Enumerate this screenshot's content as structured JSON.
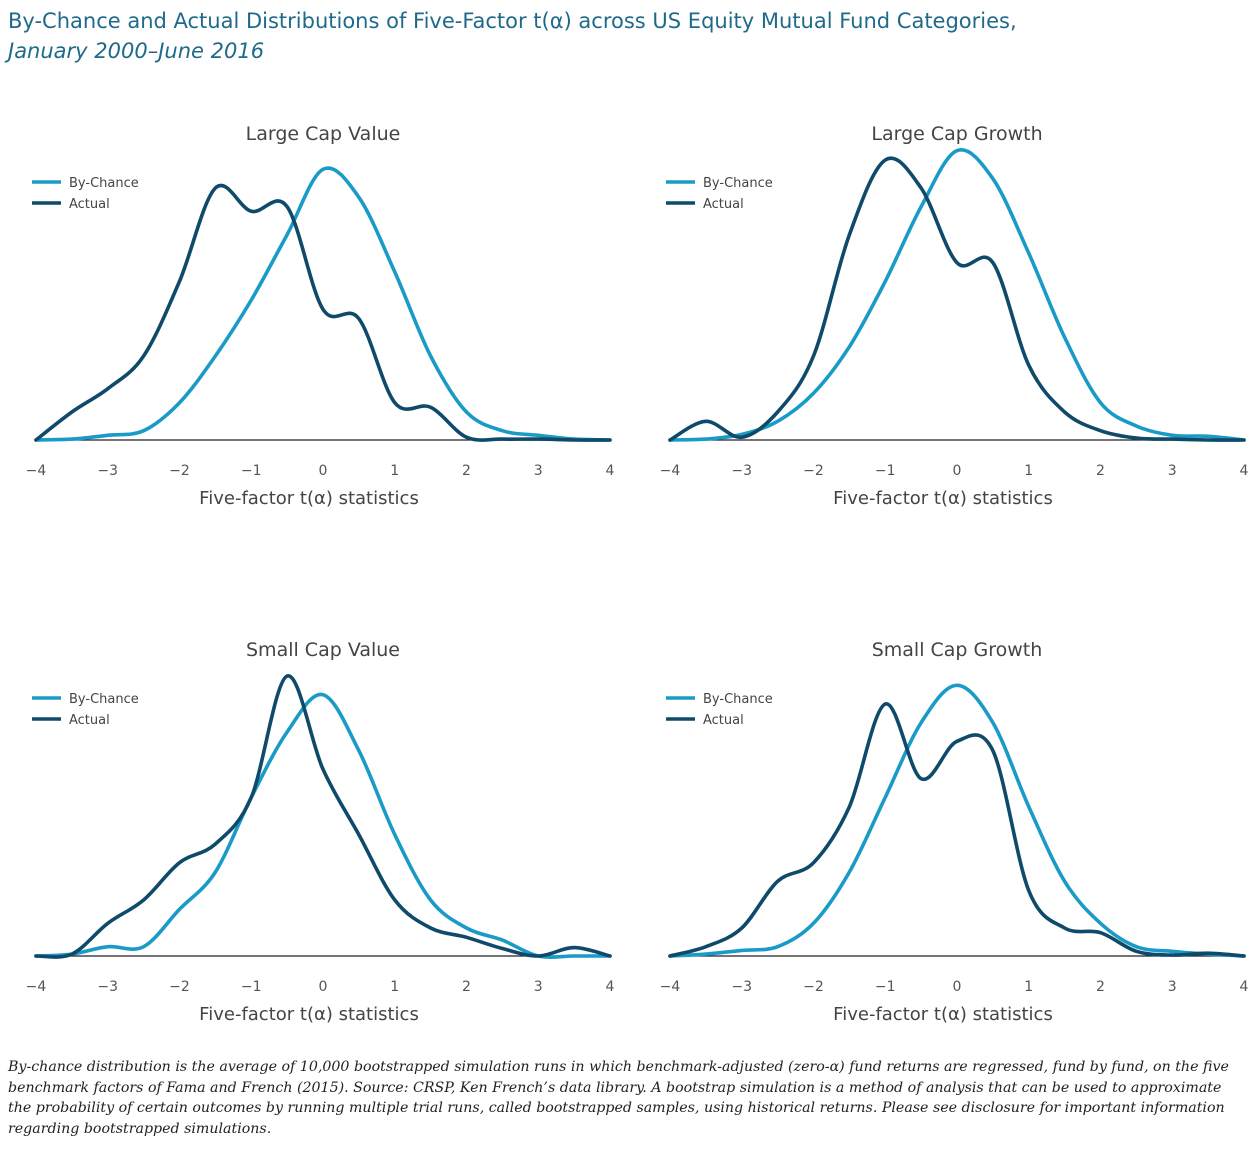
{
  "title": "By-Chance and Actual Distributions of Five-Factor t(α) across US Equity Mutual Fund Categories,",
  "subtitle": "January 2000–June 2016",
  "footnote": "By-chance distribution is the average of 10,000 bootstrapped simulation runs in which benchmark-adjusted (zero-α) fund returns are regressed, fund by fund, on the five benchmark factors of Fama and French (2015). Source: CRSP, Ken French’s data library. A bootstrap simulation is a method of analysis that can be used to approximate the probability of certain outcomes by running multiple trial runs, called bootstrapped samples, using historical returns. Please see disclosure for important information regarding bootstrapped simulations.",
  "colors": {
    "by_chance": "#1a9bc7",
    "actual": "#0f4a6b",
    "title": "#1f6a8a",
    "axis": "#222222",
    "text": "#444444"
  },
  "chart_data": [
    {
      "type": "line",
      "title": "Large Cap Value",
      "xlabel": "Five-factor t(α) statistics",
      "xlim": [
        -4,
        4
      ],
      "ylim": [
        0,
        0.3
      ],
      "xticks": [
        "−4",
        "−3",
        "−2",
        "−1",
        "0",
        "1",
        "2",
        "3",
        "4"
      ],
      "legend": "top-left",
      "series": [
        {
          "name": "By-Chance",
          "x": [
            -4,
            -3.5,
            -3,
            -2.5,
            -2,
            -1.5,
            -1,
            -0.5,
            0,
            0.5,
            1,
            1.5,
            2,
            2.5,
            3,
            3.5,
            4
          ],
          "values": [
            0,
            0.001,
            0.005,
            0.01,
            0.04,
            0.09,
            0.15,
            0.22,
            0.29,
            0.26,
            0.18,
            0.09,
            0.03,
            0.01,
            0.005,
            0.001,
            0
          ]
        },
        {
          "name": "Actual",
          "x": [
            -4,
            -3.5,
            -3,
            -2.5,
            -2,
            -1.5,
            -1,
            -0.5,
            0,
            0.5,
            1,
            1.5,
            2,
            2.5,
            3,
            3.5,
            4
          ],
          "values": [
            0,
            0.03,
            0.055,
            0.09,
            0.17,
            0.27,
            0.245,
            0.25,
            0.14,
            0.13,
            0.04,
            0.035,
            0.003,
            0.001,
            0.001,
            0,
            0
          ]
        }
      ]
    },
    {
      "type": "line",
      "title": "Large Cap Growth",
      "xlabel": "Five-factor t(α) statistics",
      "xlim": [
        -4,
        4
      ],
      "ylim": [
        0,
        0.3
      ],
      "xticks": [
        "−4",
        "−3",
        "−2",
        "−1",
        "0",
        "1",
        "2",
        "3",
        "4"
      ],
      "legend": "top-left",
      "series": [
        {
          "name": "By-Chance",
          "x": [
            -4,
            -3.5,
            -3,
            -2.5,
            -2,
            -1.5,
            -1,
            -0.5,
            0,
            0.5,
            1,
            1.5,
            2,
            2.5,
            3,
            3.5,
            4
          ],
          "values": [
            0,
            0.001,
            0.006,
            0.02,
            0.05,
            0.1,
            0.17,
            0.25,
            0.31,
            0.28,
            0.2,
            0.11,
            0.04,
            0.015,
            0.005,
            0.004,
            0
          ]
        },
        {
          "name": "Actual",
          "x": [
            -4,
            -3.5,
            -3,
            -2.5,
            -2,
            -1.5,
            -1,
            -0.5,
            0,
            0.5,
            1,
            1.5,
            2,
            2.5,
            3,
            3.5,
            4
          ],
          "values": [
            0,
            0.02,
            0.003,
            0.03,
            0.09,
            0.22,
            0.3,
            0.27,
            0.19,
            0.19,
            0.08,
            0.03,
            0.01,
            0.002,
            0.001,
            0,
            0
          ]
        }
      ]
    },
    {
      "type": "line",
      "title": "Small Cap Value",
      "xlabel": "Five-factor t(α) statistics",
      "xlim": [
        -4,
        4
      ],
      "ylim": [
        0,
        0.3
      ],
      "xticks": [
        "−4",
        "−3",
        "−2",
        "−1",
        "0",
        "1",
        "2",
        "3",
        "4"
      ],
      "legend": "top-left",
      "series": [
        {
          "name": "By-Chance",
          "x": [
            -4,
            -3.5,
            -3,
            -2.5,
            -2,
            -1.5,
            -1,
            -0.5,
            0,
            0.5,
            1,
            1.5,
            2,
            2.5,
            3,
            3.5,
            4
          ],
          "values": [
            0,
            0.002,
            0.01,
            0.01,
            0.05,
            0.09,
            0.17,
            0.24,
            0.28,
            0.22,
            0.13,
            0.06,
            0.03,
            0.017,
            0,
            0,
            0
          ]
        },
        {
          "name": "Actual",
          "x": [
            -4,
            -3.5,
            -3,
            -2.5,
            -2,
            -1.5,
            -1,
            -0.5,
            0,
            0.5,
            1,
            1.5,
            2,
            2.5,
            3,
            3.5,
            4
          ],
          "values": [
            0,
            0.002,
            0.035,
            0.06,
            0.1,
            0.12,
            0.17,
            0.3,
            0.2,
            0.13,
            0.06,
            0.03,
            0.02,
            0.008,
            0,
            0.009,
            0
          ]
        }
      ]
    },
    {
      "type": "line",
      "title": "Small Cap Growth",
      "xlabel": "Five-factor t(α) statistics",
      "xlim": [
        -4,
        4
      ],
      "ylim": [
        0,
        0.3
      ],
      "xticks": [
        "−4",
        "−3",
        "−2",
        "−1",
        "0",
        "1",
        "2",
        "3",
        "4"
      ],
      "legend": "top-left",
      "series": [
        {
          "name": "By-Chance",
          "x": [
            -4,
            -3.5,
            -3,
            -2.5,
            -2,
            -1.5,
            -1,
            -0.5,
            0,
            0.5,
            1,
            1.5,
            2,
            2.5,
            3,
            3.5,
            4
          ],
          "values": [
            0,
            0.002,
            0.006,
            0.01,
            0.035,
            0.09,
            0.17,
            0.25,
            0.29,
            0.25,
            0.16,
            0.08,
            0.035,
            0.01,
            0.005,
            0.002,
            0
          ]
        },
        {
          "name": "Actual",
          "x": [
            -4,
            -3.5,
            -3,
            -2.5,
            -2,
            -1.5,
            -1,
            -0.5,
            0,
            0.5,
            1,
            1.5,
            2,
            2.5,
            3,
            3.5,
            4
          ],
          "values": [
            0,
            0.01,
            0.03,
            0.08,
            0.1,
            0.16,
            0.27,
            0.19,
            0.23,
            0.22,
            0.07,
            0.03,
            0.025,
            0.005,
            0.001,
            0.003,
            0
          ]
        }
      ]
    }
  ]
}
